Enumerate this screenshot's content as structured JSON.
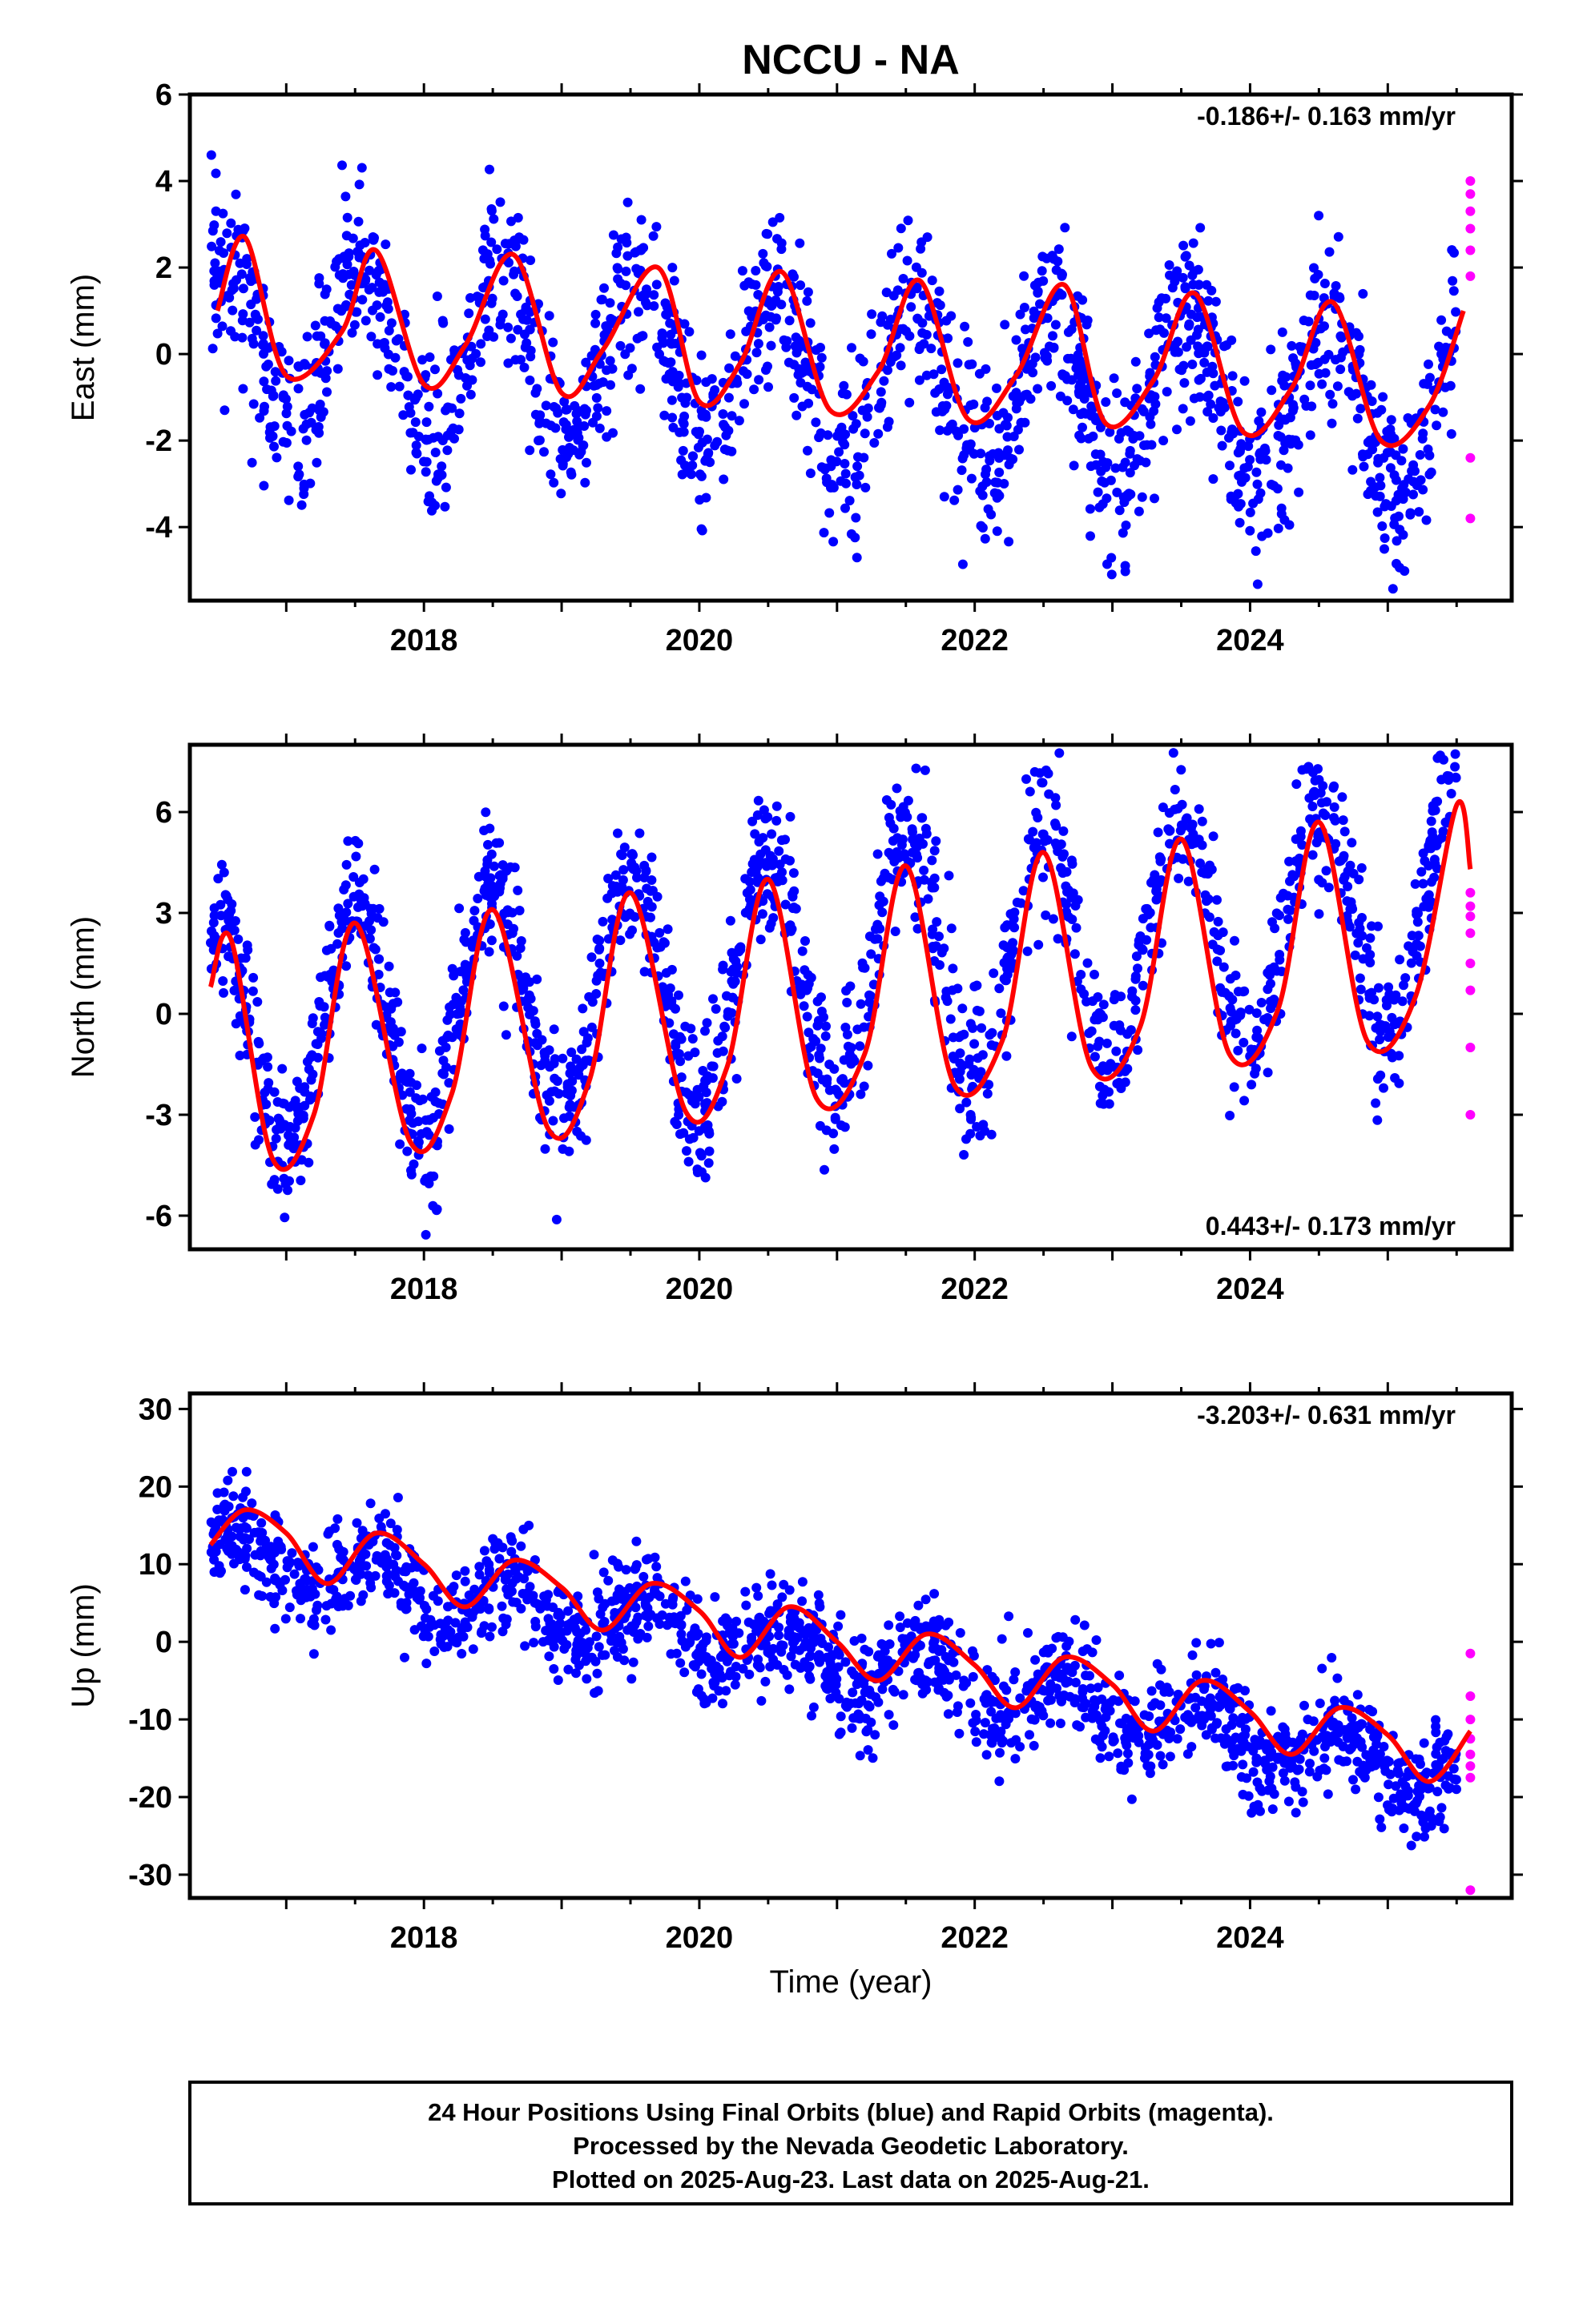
{
  "title": "NCCU - NA",
  "xlabel": "Time (year)",
  "footer": [
    "24 Hour Positions Using Final Orbits (blue) and Rapid Orbits (magenta).",
    "Processed by the Nevada Geodetic Laboratory.",
    "Plotted on 2025-Aug-23. Last data on 2025-Aug-21."
  ],
  "colors": {
    "final": "#0000ff",
    "rapid": "#ff00ff",
    "model": "#ff0000",
    "frame": "#000000"
  },
  "chart_data": [
    {
      "type": "scatter",
      "ylabel": "East (mm)",
      "rate_label": "-0.186+/- 0.163 mm/yr",
      "rate_position": "top-right",
      "xlim": [
        2016.3,
        2025.9
      ],
      "ylim": [
        -5.7,
        6
      ],
      "yticks": [
        -4,
        -2,
        0,
        2,
        4,
        6
      ],
      "xticks": [
        2018,
        2020,
        2022,
        2024
      ],
      "model": {
        "x": [
          2016.5,
          2016.7,
          2017.0,
          2017.4,
          2017.65,
          2018.0,
          2018.3,
          2018.65,
          2019.0,
          2019.3,
          2019.7,
          2020.0,
          2020.3,
          2020.6,
          2020.95,
          2021.3,
          2021.6,
          2021.95,
          2022.3,
          2022.65,
          2022.95,
          2023.3,
          2023.6,
          2023.95,
          2024.3,
          2024.6,
          2024.95,
          2025.3,
          2025.55
        ],
        "y": [
          1.0,
          2.7,
          -0.5,
          0.5,
          2.4,
          -0.7,
          0.2,
          2.3,
          -0.9,
          0.1,
          2.0,
          -1.1,
          -0.2,
          1.9,
          -1.3,
          -0.4,
          1.7,
          -1.5,
          -0.5,
          1.6,
          -1.6,
          -0.6,
          1.4,
          -1.8,
          -0.8,
          1.2,
          -2.0,
          -1.2,
          1.0
        ]
      },
      "final_points": {
        "amplitude": 1.9,
        "phase_year": 0.55,
        "trend": -0.186,
        "offset": 0.3,
        "scatter_sd": 1.0,
        "x_range": [
          2016.45,
          2025.5
        ],
        "count": 1700
      },
      "rapid_points": {
        "x": [
          2025.6,
          2025.6,
          2025.6,
          2025.6,
          2025.6,
          2025.6,
          2025.6,
          2025.6
        ],
        "y": [
          4.0,
          3.7,
          3.3,
          2.9,
          2.4,
          1.8,
          -2.4,
          -3.8
        ]
      }
    },
    {
      "type": "scatter",
      "ylabel": "North (mm)",
      "rate_label": "0.443+/- 0.173 mm/yr",
      "rate_position": "bottom-right",
      "xlim": [
        2016.3,
        2025.9
      ],
      "ylim": [
        -7,
        8
      ],
      "yticks": [
        -6,
        -3,
        0,
        3,
        6
      ],
      "xticks": [
        2018,
        2020,
        2022,
        2024
      ],
      "model": {
        "x": [
          2016.45,
          2016.6,
          2016.9,
          2017.2,
          2017.5,
          2017.9,
          2018.2,
          2018.5,
          2018.9,
          2019.2,
          2019.5,
          2019.9,
          2020.2,
          2020.5,
          2020.85,
          2021.2,
          2021.5,
          2021.85,
          2022.2,
          2022.5,
          2022.85,
          2023.2,
          2023.5,
          2023.85,
          2024.2,
          2024.5,
          2024.85,
          2025.2,
          2025.5,
          2025.6
        ],
        "y": [
          0.8,
          2.2,
          -4.3,
          -3.0,
          2.7,
          -3.8,
          -2.4,
          3.1,
          -3.4,
          -2.0,
          3.6,
          -2.9,
          -1.6,
          4.0,
          -2.5,
          -1.2,
          4.4,
          -2.1,
          -0.8,
          4.8,
          -1.6,
          -0.4,
          5.2,
          -1.2,
          0.1,
          5.7,
          -0.8,
          0.5,
          6.2,
          4.3
        ]
      },
      "final_points": {
        "amplitude": 3.6,
        "phase_year": 0.5,
        "trend": 0.443,
        "offset": -0.8,
        "scatter_sd": 1.1,
        "x_range": [
          2016.45,
          2025.5
        ],
        "count": 1700
      },
      "rapid_points": {
        "x": [
          2025.6,
          2025.6,
          2025.6,
          2025.6,
          2025.6,
          2025.6,
          2025.6,
          2025.6
        ],
        "y": [
          3.6,
          3.2,
          2.4,
          1.5,
          0.7,
          -1.0,
          -3.0,
          2.9
        ]
      }
    },
    {
      "type": "scatter",
      "ylabel": "Up (mm)",
      "rate_label": "-3.203+/- 0.631 mm/yr",
      "rate_position": "top-right",
      "xlim": [
        2016.3,
        2025.9
      ],
      "ylim": [
        -33,
        32
      ],
      "yticks": [
        -30,
        -20,
        -10,
        0,
        10,
        20,
        30
      ],
      "xticks": [
        2018,
        2020,
        2022,
        2024
      ],
      "model": {
        "x": [
          2016.45,
          2016.7,
          2017.0,
          2017.3,
          2017.65,
          2018.0,
          2018.3,
          2018.65,
          2019.0,
          2019.3,
          2019.65,
          2020.0,
          2020.3,
          2020.65,
          2021.0,
          2021.3,
          2021.65,
          2022.0,
          2022.3,
          2022.65,
          2023.0,
          2023.3,
          2023.65,
          2024.0,
          2024.3,
          2024.65,
          2025.0,
          2025.3,
          2025.6
        ],
        "y": [
          12.5,
          17.0,
          14.0,
          7.5,
          14.0,
          10.0,
          4.5,
          10.5,
          7.0,
          1.5,
          7.5,
          4.0,
          -2.0,
          4.5,
          0.0,
          -5.0,
          1.0,
          -3.0,
          -8.5,
          -2.0,
          -5.5,
          -11.5,
          -5.0,
          -9.0,
          -14.5,
          -8.5,
          -12.0,
          -18.0,
          -11.5
        ]
      },
      "final_points": {
        "amplitude": 3.2,
        "phase_year": 0.65,
        "trend": -3.203,
        "offset": 12.0,
        "scatter_sd": 3.3,
        "x_range": [
          2016.45,
          2025.5
        ],
        "count": 1700
      },
      "rapid_points": {
        "x": [
          2025.6,
          2025.6,
          2025.6,
          2025.6,
          2025.6,
          2025.6,
          2025.6,
          2025.6
        ],
        "y": [
          -1.5,
          -7.0,
          -10.0,
          -12.5,
          -14.5,
          -16.0,
          -17.5,
          -32.0
        ]
      }
    }
  ]
}
